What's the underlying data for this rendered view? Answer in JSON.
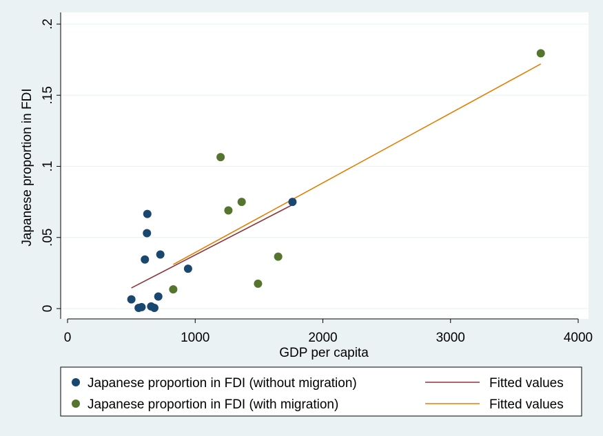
{
  "chart_data": {
    "type": "scatter",
    "xlabel": "GDP per capita",
    "ylabel": "Japanese proportion in FDI",
    "xlim": [
      0,
      4000
    ],
    "ylim": [
      0,
      0.2
    ],
    "xticks": [
      {
        "value": 0,
        "label": "0"
      },
      {
        "value": 1000,
        "label": "1000"
      },
      {
        "value": 2000,
        "label": "2000"
      },
      {
        "value": 3000,
        "label": "3000"
      },
      {
        "value": 4000,
        "label": "4000"
      }
    ],
    "yticks": [
      {
        "value": 0,
        "label": "0"
      },
      {
        "value": 0.05,
        "label": ".05"
      },
      {
        "value": 0.1,
        "label": ".1"
      },
      {
        "value": 0.15,
        "label": ".15"
      },
      {
        "value": 0.2,
        "label": ".2"
      }
    ],
    "grid": true,
    "legend_position": "bottom",
    "series": [
      {
        "name": "Japanese proportion in FDI (without migration)",
        "kind": "scatter",
        "color": "#1a476f",
        "points": [
          [
            500,
            0.0065
          ],
          [
            557,
            0.0005
          ],
          [
            580,
            0.001
          ],
          [
            606,
            0.0345
          ],
          [
            622,
            0.053
          ],
          [
            625,
            0.0665
          ],
          [
            655,
            0.0015
          ],
          [
            680,
            0.0005
          ],
          [
            711,
            0.0085
          ],
          [
            727,
            0.038
          ],
          [
            944,
            0.028
          ],
          [
            1762,
            0.075
          ]
        ]
      },
      {
        "name": "Japanese proportion in FDI (with migration)",
        "kind": "scatter",
        "color": "#55752f",
        "points": [
          [
            828,
            0.0135
          ],
          [
            1199,
            0.1065
          ],
          [
            1260,
            0.069
          ],
          [
            1364,
            0.075
          ],
          [
            1492,
            0.0175
          ],
          [
            1650,
            0.0365
          ],
          [
            3707,
            0.1795
          ]
        ]
      },
      {
        "name": "Fitted values",
        "kind": "line",
        "color": "#90353b",
        "points": [
          [
            500,
            0.0145
          ],
          [
            1762,
            0.073
          ]
        ]
      },
      {
        "name": "Fitted values",
        "kind": "line",
        "color": "#e37e00",
        "points": [
          [
            828,
            0.031
          ],
          [
            3707,
            0.172
          ]
        ]
      }
    ]
  }
}
